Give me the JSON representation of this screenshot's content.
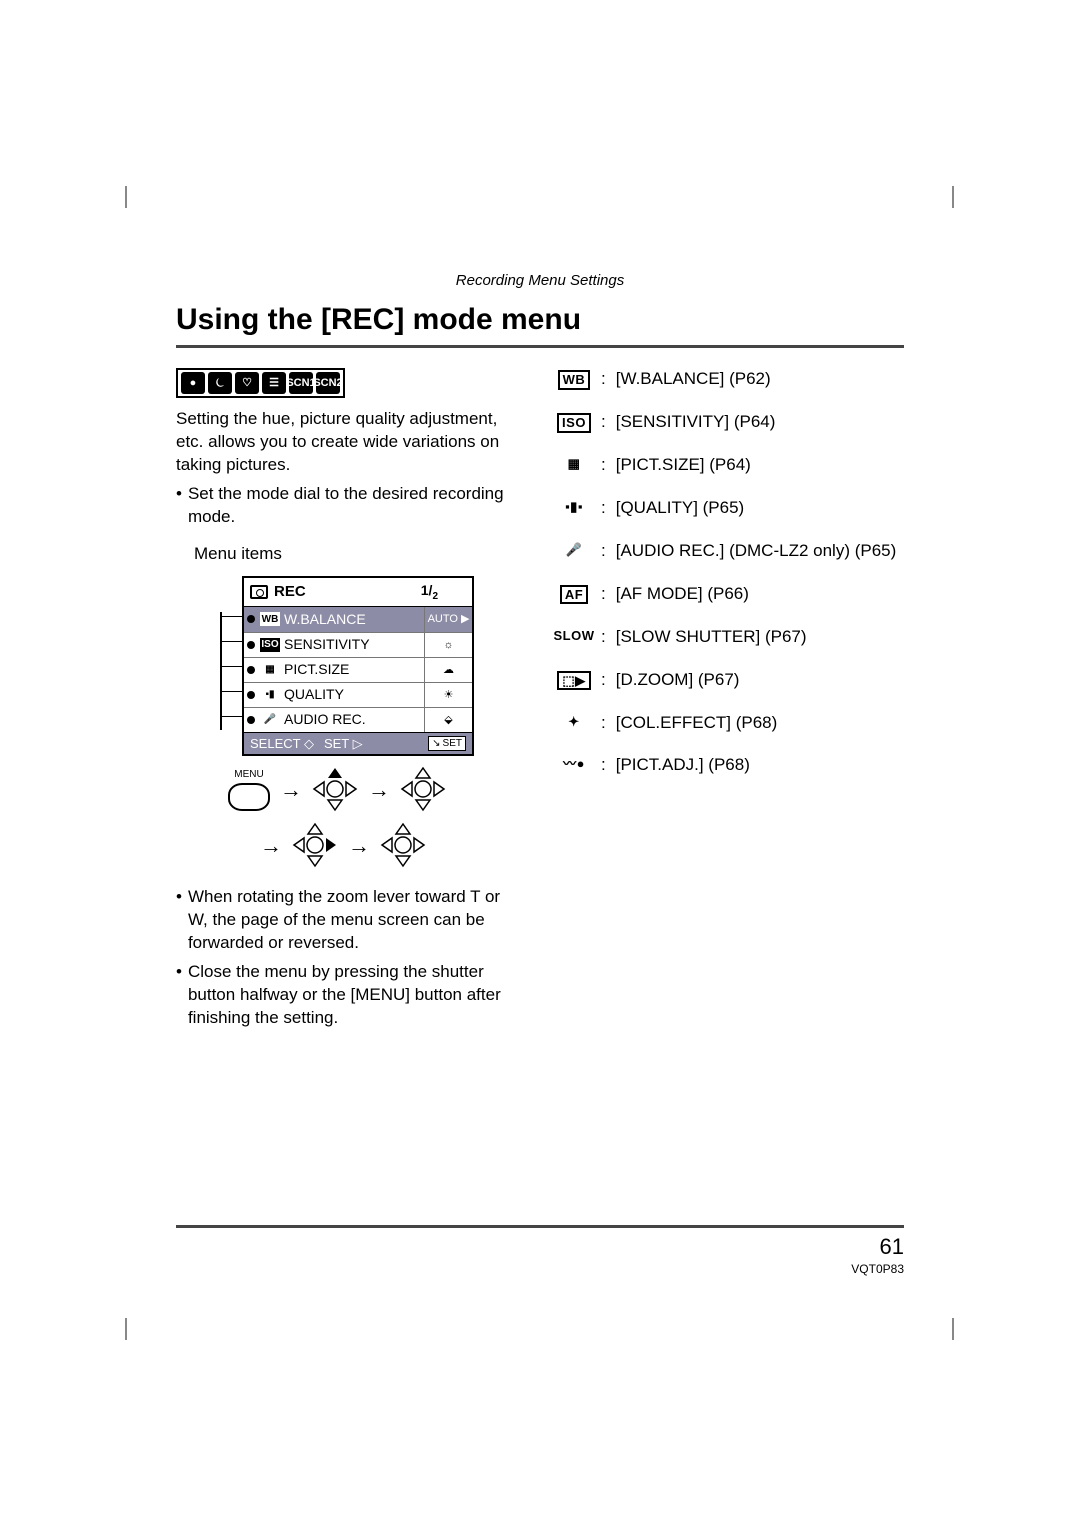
{
  "section_header": "Recording Menu Settings",
  "title": "Using the [REC] mode menu",
  "mode_icons": [
    "●",
    "⏾",
    "♡",
    "☰",
    "SCN1",
    "SCN2"
  ],
  "left": {
    "intro": "Setting the hue, picture quality adjustment, etc. allows you to create wide variations on taking pictures.",
    "bullet1": "Set the mode dial to the desired recording mode.",
    "menu_items_label": "Menu items",
    "bullet2": "When rotating the zoom lever toward T or W, the page of the menu screen can be forwarded or reversed.",
    "bullet3": "Close the menu by pressing the shutter button halfway or the [MENU] button after finishing the setting."
  },
  "menu": {
    "header_label": "REC",
    "page_frac": "1/",
    "page_frac_sub": "2",
    "rows": [
      {
        "icon_text": "WB",
        "icon_style": "fill",
        "label": "W.BALANCE",
        "val": "AUTO",
        "hl": true
      },
      {
        "icon_text": "ISO",
        "icon_style": "fill",
        "label": "SENSITIVITY",
        "val": "☼",
        "hl": false
      },
      {
        "icon_text": "▦",
        "icon_style": "nb",
        "label": "PICT.SIZE",
        "val": "☁",
        "hl": false
      },
      {
        "icon_text": "▪▮",
        "icon_style": "nb",
        "label": "QUALITY",
        "val": "☀",
        "hl": false
      },
      {
        "icon_text": "🎤",
        "icon_style": "nb",
        "label": "AUDIO REC.",
        "val": "⬙",
        "hl": false
      }
    ],
    "footer_select": "SELECT",
    "footer_set": "SET",
    "footer_setbox": "SET",
    "menu_btn_label": "MENU"
  },
  "right_items": [
    {
      "icon": "WB",
      "boxed": true,
      "text": "[W.BALANCE] (P62)"
    },
    {
      "icon": "ISO",
      "boxed": true,
      "text": "[SENSITIVITY] (P64)"
    },
    {
      "icon": "▦",
      "boxed": false,
      "text": "[PICT.SIZE] (P64)"
    },
    {
      "icon": "▪▮▪",
      "boxed": false,
      "text": "[QUALITY] (P65)"
    },
    {
      "icon": "🎤",
      "boxed": false,
      "text": "[AUDIO REC.] (DMC-LZ2 only) (P65)"
    },
    {
      "icon": "AF",
      "boxed": true,
      "text": "[AF MODE] (P66)"
    },
    {
      "icon": "SLOW",
      "boxed": false,
      "text": "[SLOW SHUTTER] (P67)"
    },
    {
      "icon": "⬚▶",
      "boxed": true,
      "text": "[D.ZOOM] (P67)"
    },
    {
      "icon": "✦",
      "boxed": false,
      "text": "[COL.EFFECT] (P68)"
    },
    {
      "icon": "〰●",
      "boxed": false,
      "text": "[PICT.ADJ.] (P68)"
    }
  ],
  "page_number": "61",
  "doc_code": "VQT0P83"
}
